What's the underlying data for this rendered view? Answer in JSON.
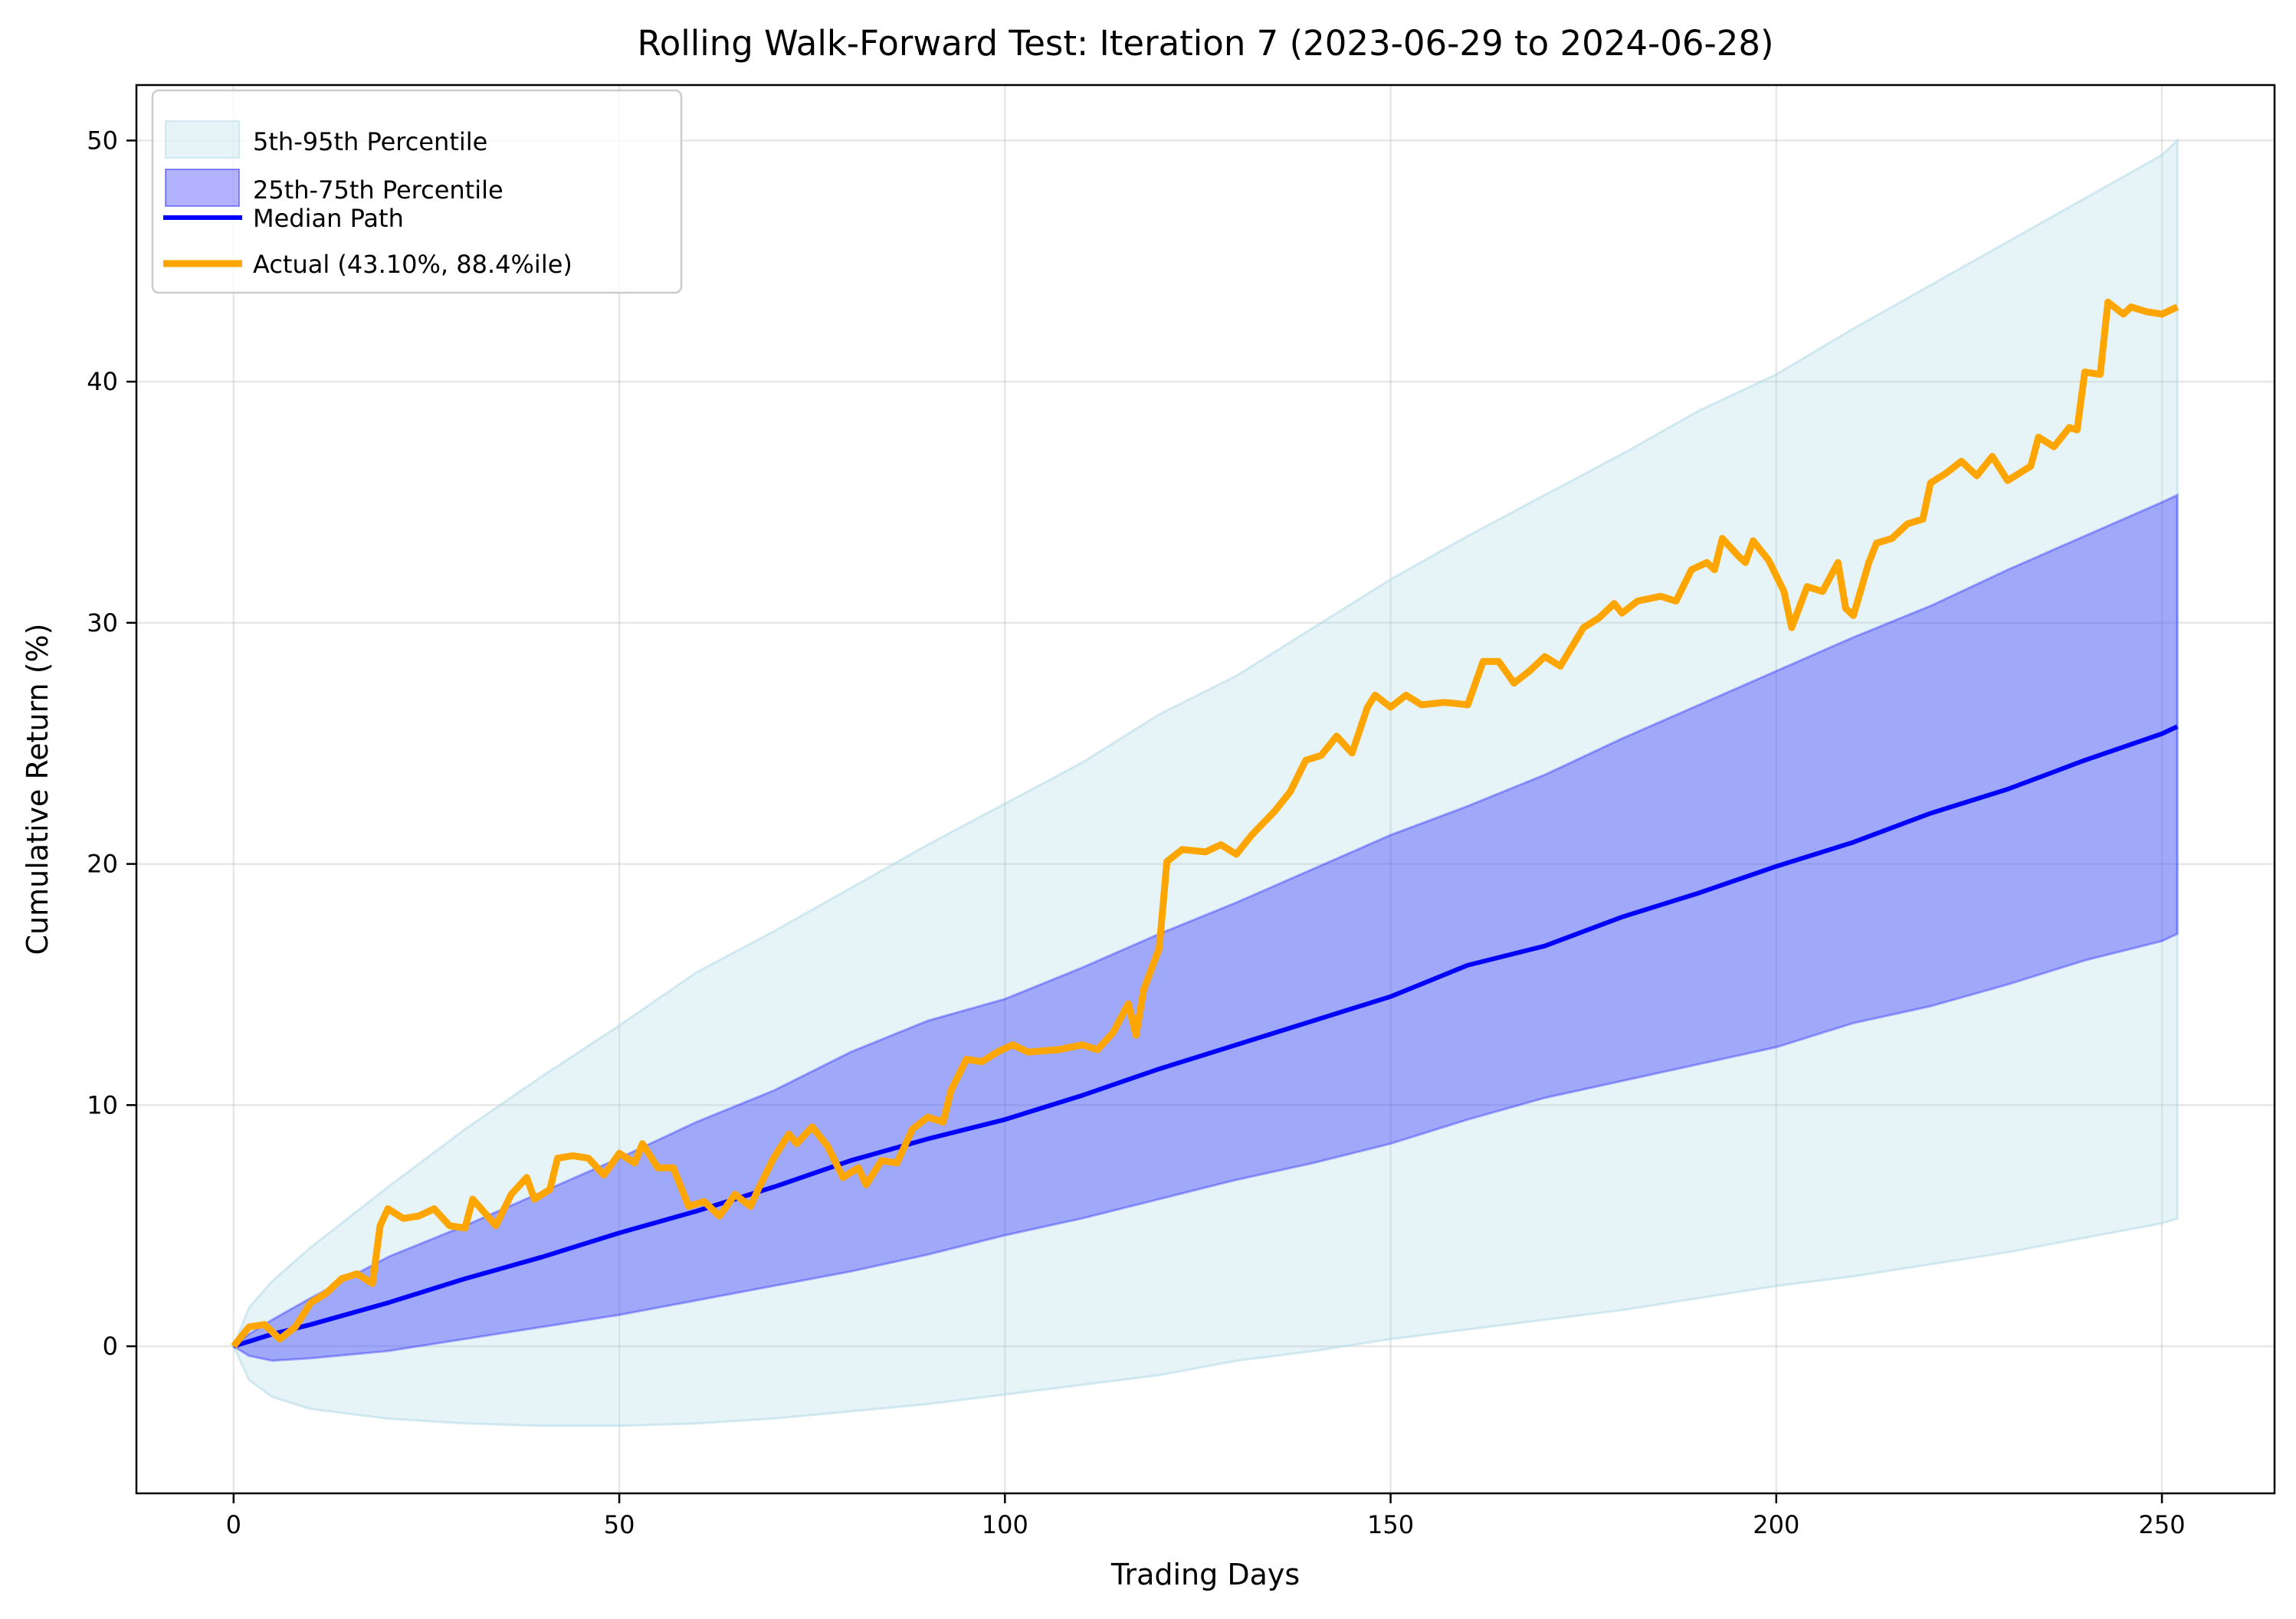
{
  "chart_data": {
    "type": "area",
    "title": "Rolling Walk-Forward Test: Iteration 7 (2023-06-29 to 2024-06-28)",
    "xlabel": "Trading Days",
    "ylabel": "Cumulative Return (%)",
    "xlim": [
      -12.6,
      264.6
    ],
    "ylim": [
      -6.1,
      52.3
    ],
    "xticks": [
      0,
      50,
      100,
      150,
      200,
      250
    ],
    "yticks": [
      0,
      10,
      20,
      30,
      40,
      50
    ],
    "grid": true,
    "legend_position": "top-left",
    "colors": {
      "band_outer": "#add8e6",
      "band_inner": "#0000ff",
      "median": "#0000ff",
      "actual": "#ffa500"
    },
    "band_x": [
      0,
      2,
      5,
      10,
      20,
      30,
      40,
      50,
      60,
      70,
      80,
      90,
      100,
      110,
      120,
      130,
      140,
      150,
      160,
      170,
      180,
      190,
      200,
      210,
      220,
      230,
      240,
      250,
      252
    ],
    "series": [
      {
        "name": "5th-95th Percentile",
        "kind": "band",
        "lower": [
          0,
          -1.4,
          -2.1,
          -2.6,
          -3.0,
          -3.2,
          -3.3,
          -3.3,
          -3.2,
          -3.0,
          -2.7,
          -2.4,
          -2.0,
          -1.6,
          -1.2,
          -0.6,
          -0.2,
          0.3,
          0.7,
          1.1,
          1.5,
          2.0,
          2.5,
          2.9,
          3.4,
          3.9,
          4.5,
          5.1,
          5.3
        ],
        "upper": [
          0,
          1.6,
          2.7,
          4.1,
          6.6,
          9.0,
          11.2,
          13.3,
          15.5,
          17.2,
          19.0,
          20.8,
          22.5,
          24.2,
          26.2,
          27.8,
          29.8,
          31.8,
          33.6,
          35.3,
          37.0,
          38.8,
          40.3,
          42.2,
          44.0,
          45.8,
          47.6,
          49.4,
          50.0
        ]
      },
      {
        "name": "25th-75th Percentile",
        "kind": "band",
        "lower": [
          0,
          -0.4,
          -0.6,
          -0.5,
          -0.2,
          0.3,
          0.8,
          1.3,
          1.9,
          2.5,
          3.1,
          3.8,
          4.6,
          5.3,
          6.1,
          6.9,
          7.6,
          8.4,
          9.4,
          10.3,
          11.0,
          11.7,
          12.4,
          13.4,
          14.1,
          15.0,
          16.0,
          16.8,
          17.1
        ],
        "upper": [
          0,
          0.5,
          1.1,
          2.0,
          3.7,
          5.0,
          6.4,
          7.8,
          9.3,
          10.6,
          12.2,
          13.5,
          14.4,
          15.7,
          17.1,
          18.4,
          19.8,
          21.2,
          22.4,
          23.7,
          25.2,
          26.6,
          28.0,
          29.4,
          30.7,
          32.2,
          33.6,
          35.0,
          35.3
        ]
      },
      {
        "name": "Median Path",
        "kind": "line",
        "values": [
          0,
          0.2,
          0.5,
          0.9,
          1.8,
          2.8,
          3.7,
          4.7,
          5.6,
          6.6,
          7.7,
          8.6,
          9.4,
          10.4,
          11.5,
          12.5,
          13.5,
          14.5,
          15.8,
          16.6,
          17.8,
          18.8,
          19.9,
          20.9,
          22.1,
          23.1,
          24.3,
          25.4,
          25.7
        ]
      },
      {
        "name": "Actual (43.10%, 88.4%ile)",
        "kind": "line",
        "x": [
          0,
          2,
          4,
          6,
          8,
          10,
          12,
          14,
          16,
          18,
          19,
          20,
          22,
          24,
          26,
          28,
          30,
          31,
          34,
          36,
          38,
          39,
          41,
          42,
          44,
          46,
          48,
          50,
          52,
          53,
          55,
          57,
          59,
          61,
          63,
          65,
          67,
          68,
          70,
          72,
          73,
          75,
          77,
          79,
          81,
          82,
          84,
          86,
          88,
          90,
          92,
          93,
          95,
          97,
          99,
          101,
          103,
          107,
          110,
          112,
          114,
          116,
          117,
          118,
          120,
          121,
          123,
          126,
          128,
          130,
          132,
          135,
          137,
          139,
          141,
          143,
          145,
          147,
          148,
          150,
          152,
          154,
          157,
          160,
          162,
          164,
          166,
          168,
          170,
          172,
          175,
          177,
          179,
          180,
          182,
          185,
          187,
          189,
          191,
          192,
          193,
          195,
          196,
          197,
          199,
          201,
          202,
          204,
          206,
          208,
          209,
          210,
          212,
          213,
          215,
          217,
          219,
          220,
          222,
          224,
          226,
          228,
          230,
          233,
          234,
          236,
          238,
          239,
          240,
          242,
          243,
          245,
          246,
          248,
          250,
          252
        ],
        "values": [
          0,
          0.8,
          0.9,
          0.3,
          0.8,
          1.8,
          2.2,
          2.8,
          3.0,
          2.6,
          5.0,
          5.7,
          5.3,
          5.4,
          5.7,
          5.0,
          4.9,
          6.1,
          5.0,
          6.3,
          7.0,
          6.1,
          6.5,
          7.8,
          7.9,
          7.8,
          7.1,
          8.0,
          7.6,
          8.4,
          7.4,
          7.4,
          5.8,
          6.0,
          5.4,
          6.3,
          5.8,
          6.5,
          7.8,
          8.8,
          8.4,
          9.1,
          8.3,
          7.0,
          7.4,
          6.7,
          7.7,
          7.6,
          9.0,
          9.5,
          9.3,
          10.6,
          11.9,
          11.8,
          12.2,
          12.5,
          12.2,
          12.3,
          12.5,
          12.3,
          13.0,
          14.2,
          12.9,
          14.8,
          16.5,
          20.1,
          20.6,
          20.5,
          20.8,
          20.4,
          21.2,
          22.2,
          23.0,
          24.3,
          24.5,
          25.3,
          24.6,
          26.5,
          27.0,
          26.5,
          27.0,
          26.6,
          26.7,
          26.6,
          28.4,
          28.4,
          27.5,
          28.0,
          28.6,
          28.2,
          29.8,
          30.2,
          30.8,
          30.4,
          30.9,
          31.1,
          30.9,
          32.2,
          32.5,
          32.2,
          33.5,
          32.8,
          32.5,
          33.4,
          32.6,
          31.3,
          29.8,
          31.5,
          31.3,
          32.5,
          30.6,
          30.3,
          32.5,
          33.3,
          33.5,
          34.1,
          34.3,
          35.8,
          36.2,
          36.7,
          36.1,
          36.9,
          35.9,
          36.5,
          37.7,
          37.3,
          38.1,
          38.0,
          40.4,
          40.3,
          43.3,
          42.8,
          43.1,
          42.9,
          42.8,
          43.1
        ]
      }
    ]
  }
}
